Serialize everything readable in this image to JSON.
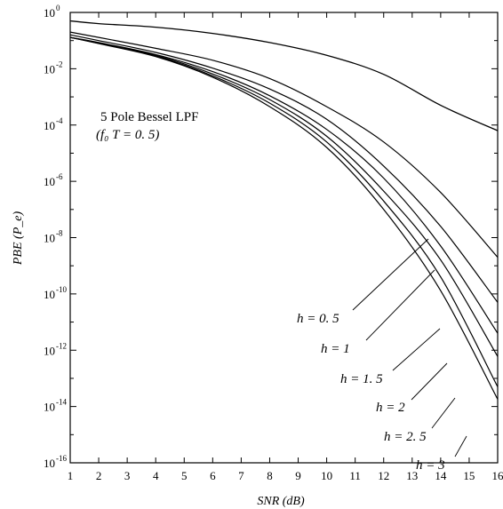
{
  "chart_data": {
    "type": "line",
    "xlabel": "SNR (dB)",
    "ylabel": "PBE (P_e)",
    "xlim": [
      1,
      16
    ],
    "ylim_exponent": [
      -16,
      0
    ],
    "yscale": "log",
    "x_ticks": [
      "1",
      "2",
      "3",
      "4",
      "5",
      "6",
      "7",
      "8",
      "9",
      "10",
      "11",
      "12",
      "13",
      "14",
      "15",
      "16"
    ],
    "y_ticks": [
      {
        "base": "10",
        "exp": "0"
      },
      {
        "base": "10",
        "exp": "-2"
      },
      {
        "base": "10",
        "exp": "-4"
      },
      {
        "base": "10",
        "exp": "-6"
      },
      {
        "base": "10",
        "exp": "-8"
      },
      {
        "base": "10",
        "exp": "-10"
      },
      {
        "base": "10",
        "exp": "-12"
      },
      {
        "base": "10",
        "exp": "-14"
      },
      {
        "base": "10",
        "exp": "-16"
      }
    ],
    "annotation_lines": [
      "5 Pole Bessel LPF",
      "(f₀ T = 0. 5)"
    ],
    "x": [
      1,
      2,
      4,
      6,
      8,
      10,
      12,
      14,
      16
    ],
    "series": [
      {
        "name": "",
        "values": [
          0.5,
          0.4,
          0.3,
          0.18,
          0.085,
          0.03,
          0.0063,
          0.0005,
          6.3e-05
        ]
      },
      {
        "name": "h = 0. 5",
        "values": [
          0.2,
          0.13,
          0.053,
          0.02,
          0.0045,
          0.00045,
          2.5e-05,
          4e-07,
          2e-09
        ]
      },
      {
        "name": "h = 1",
        "values": [
          0.16,
          0.1,
          0.038,
          0.0105,
          0.0019,
          0.00016,
          3.5e-06,
          2.5e-08,
          5e-11
        ]
      },
      {
        "name": "h = 1. 5",
        "values": [
          0.13,
          0.085,
          0.032,
          0.0079,
          0.0011,
          7e-05,
          1.3e-06,
          5e-09,
          4e-12
        ]
      },
      {
        "name": "h = 2",
        "values": [
          0.13,
          0.082,
          0.03,
          0.0065,
          0.0008,
          4e-05,
          4.5e-07,
          1.6e-09,
          6e-13
        ]
      },
      {
        "name": "h = 2. 5",
        "values": [
          0.13,
          0.08,
          0.028,
          0.0056,
          0.0006,
          2.5e-05,
          2e-07,
          4e-10,
          5e-14
        ]
      },
      {
        "name": "h = 3",
        "values": [
          0.13,
          0.078,
          0.027,
          0.005,
          0.00045,
          1.6e-05,
          1e-07,
          1.3e-10,
          1.8e-14
        ]
      }
    ],
    "curve_labels": [
      {
        "text": "h = 0. 5",
        "series": 1
      },
      {
        "text": "h = 1",
        "series": 2
      },
      {
        "text": "h = 1. 5",
        "series": 3
      },
      {
        "text": "h = 2",
        "series": 4
      },
      {
        "text": "h = 2. 5",
        "series": 5
      },
      {
        "text": "h = 3",
        "series": 6
      }
    ],
    "grid": false,
    "line_color": "#000000",
    "background": "#ffffff"
  }
}
